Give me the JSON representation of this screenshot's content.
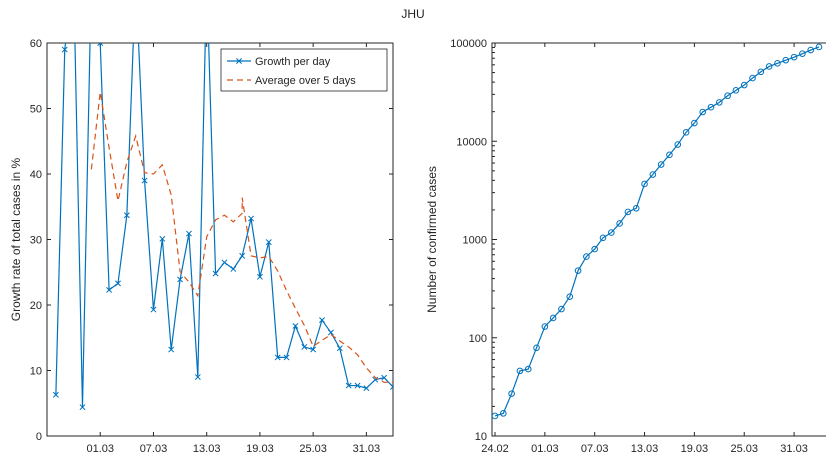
{
  "page": {
    "title": "JHU"
  },
  "chart_data": [
    {
      "type": "line",
      "title": "",
      "xlabel": "",
      "ylabel": "Growth rate of total cases in %",
      "xlim": [
        "24.02",
        "03.04"
      ],
      "ylim": [
        0,
        60
      ],
      "yticks": [
        0,
        10,
        20,
        30,
        40,
        50,
        60
      ],
      "xtick_labels": [
        "01.03",
        "07.03",
        "13.03",
        "19.03",
        "25.03",
        "31.03"
      ],
      "grid": false,
      "legend": {
        "position": "top-right",
        "entries": [
          "Growth per day",
          "Average over 5 days"
        ]
      },
      "series": [
        {
          "name": "Growth per day",
          "color": "#0072BD",
          "style": "solid",
          "marker": "x",
          "points": [
            [
              "25.02",
              6.3
            ],
            [
              "26.02",
              59.0
            ],
            [
              "27.02",
              70.0
            ],
            [
              "28.02",
              4.4
            ],
            [
              "29.02",
              70.0
            ],
            [
              "01.03",
              60.0
            ],
            [
              "02.03",
              22.3
            ],
            [
              "03.03",
              23.3
            ],
            [
              "04.03",
              33.7
            ],
            [
              "05.03",
              70.0
            ],
            [
              "06.03",
              39.0
            ],
            [
              "07.03",
              19.3
            ],
            [
              "08.03",
              30.1
            ],
            [
              "09.03",
              13.2
            ],
            [
              "10.03",
              23.9
            ],
            [
              "11.03",
              30.9
            ],
            [
              "12.03",
              9.0
            ],
            [
              "13.03",
              70.0
            ],
            [
              "14.03",
              24.8
            ],
            [
              "15.03",
              26.5
            ],
            [
              "16.03",
              25.5
            ],
            [
              "17.03",
              27.5
            ],
            [
              "18.03",
              33.2
            ],
            [
              "19.03",
              24.3
            ],
            [
              "20.03",
              29.6
            ],
            [
              "21.03",
              12.0
            ],
            [
              "22.03",
              12.0
            ],
            [
              "23.03",
              16.8
            ],
            [
              "24.03",
              13.6
            ],
            [
              "25.03",
              13.2
            ],
            [
              "26.03",
              17.7
            ],
            [
              "27.03",
              15.8
            ],
            [
              "28.03",
              13.4
            ],
            [
              "29.03",
              7.7
            ],
            [
              "30.03",
              7.7
            ],
            [
              "31.03",
              7.3
            ],
            [
              "01.04",
              8.6
            ],
            [
              "02.04",
              8.9
            ],
            [
              "03.04",
              7.5
            ]
          ]
        },
        {
          "name": "Average over 5 days",
          "color": "#D95319",
          "style": "dashed",
          "marker": "none",
          "points": [
            [
              "29.02",
              40.7
            ],
            [
              "01.03",
              52.5
            ],
            [
              "02.03",
              44.0
            ],
            [
              "03.03",
              35.9
            ],
            [
              "04.03",
              41.8
            ],
            [
              "05.03",
              45.8
            ],
            [
              "06.03",
              40.2
            ],
            [
              "07.03",
              40.0
            ],
            [
              "08.03",
              41.4
            ],
            [
              "09.03",
              36.8
            ],
            [
              "10.03",
              25.1
            ],
            [
              "11.03",
              23.5
            ],
            [
              "12.03",
              21.4
            ],
            [
              "13.03",
              30.4
            ],
            [
              "14.03",
              33.0
            ],
            [
              "15.03",
              33.7
            ],
            [
              "16.03",
              32.7
            ],
            [
              "17.03",
              34.0
            ],
            [
              "17.03",
              36.4
            ],
            [
              "18.03",
              27.5
            ],
            [
              "19.03",
              27.2
            ],
            [
              "20.03",
              27.4
            ],
            [
              "21.03",
              25.2
            ],
            [
              "22.03",
              22.2
            ],
            [
              "23.03",
              19.5
            ],
            [
              "24.03",
              16.9
            ],
            [
              "25.03",
              13.7
            ],
            [
              "26.03",
              14.6
            ],
            [
              "27.03",
              15.5
            ],
            [
              "28.03",
              14.5
            ],
            [
              "29.03",
              13.6
            ],
            [
              "30.03",
              12.4
            ],
            [
              "31.03",
              10.4
            ],
            [
              "01.04",
              8.9
            ],
            [
              "02.04",
              8.2
            ],
            [
              "03.04",
              8.2
            ]
          ]
        }
      ]
    },
    {
      "type": "line",
      "title": "",
      "xlabel": "",
      "ylabel": "Number of confirmed cases",
      "yscale": "log",
      "xlim": [
        "24.02",
        "03.04"
      ],
      "ylim": [
        10,
        100000
      ],
      "ytick_labels": [
        "10",
        "100",
        "1000",
        "10000",
        "100000"
      ],
      "xtick_labels": [
        "24.02",
        "01.03",
        "07.03",
        "13.03",
        "19.03",
        "25.03",
        "31.03"
      ],
      "grid": false,
      "series": [
        {
          "color": "#0072BD",
          "style": "solid",
          "marker": "o",
          "points": [
            [
              "24.02",
              16
            ],
            [
              "25.02",
              17
            ],
            [
              "26.02",
              27
            ],
            [
              "27.02",
              46
            ],
            [
              "28.02",
              48
            ],
            [
              "29.02",
              79
            ],
            [
              "01.03",
              130
            ],
            [
              "02.03",
              159
            ],
            [
              "03.03",
              196
            ],
            [
              "04.03",
              262
            ],
            [
              "05.03",
              482
            ],
            [
              "06.03",
              670
            ],
            [
              "07.03",
              799
            ],
            [
              "08.03",
              1040
            ],
            [
              "09.03",
              1176
            ],
            [
              "10.03",
              1457
            ],
            [
              "11.03",
              1908
            ],
            [
              "12.03",
              2078
            ],
            [
              "13.03",
              3675
            ],
            [
              "14.03",
              4585
            ],
            [
              "15.03",
              5795
            ],
            [
              "16.03",
              7272
            ],
            [
              "17.03",
              9257
            ],
            [
              "18.03",
              12327
            ],
            [
              "19.03",
              15320
            ],
            [
              "20.03",
              19848
            ],
            [
              "21.03",
              22213
            ],
            [
              "22.03",
              24873
            ],
            [
              "23.03",
              29056
            ],
            [
              "24.03",
              32986
            ],
            [
              "25.03",
              37323
            ],
            [
              "26.03",
              43938
            ],
            [
              "27.03",
              50871
            ],
            [
              "28.03",
              57695
            ],
            [
              "29.03",
              62095
            ],
            [
              "30.03",
              66885
            ],
            [
              "31.03",
              71808
            ],
            [
              "01.04",
              77872
            ],
            [
              "02.04",
              84794
            ],
            [
              "03.04",
              91159
            ]
          ]
        }
      ]
    }
  ]
}
